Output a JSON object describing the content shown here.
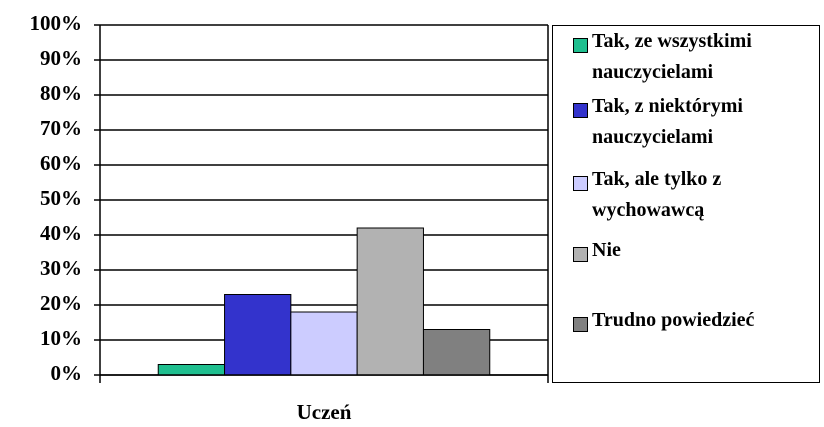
{
  "chart_data": {
    "type": "bar",
    "categories": [
      "Uczeń"
    ],
    "series": [
      {
        "name": "Tak, ze wszystkimi nauczycielami",
        "color": "#1fbf8f",
        "values": [
          3
        ]
      },
      {
        "name": "Tak, z niektórymi nauczycielami",
        "color": "#3333cc",
        "values": [
          23
        ]
      },
      {
        "name": "Tak, ale tylko z wychowawcą",
        "color": "#ccccff",
        "values": [
          18
        ]
      },
      {
        "name": "Nie",
        "color": "#b2b2b2",
        "values": [
          42
        ]
      },
      {
        "name": "Trudno powiedzieć",
        "color": "#808080",
        "values": [
          13
        ]
      }
    ],
    "ylim": [
      0,
      100
    ],
    "yticks": [
      {
        "value": 0,
        "label": "0%"
      },
      {
        "value": 10,
        "label": "10%"
      },
      {
        "value": 20,
        "label": "20%"
      },
      {
        "value": 30,
        "label": "30%"
      },
      {
        "value": 40,
        "label": "40%"
      },
      {
        "value": 50,
        "label": "50%"
      },
      {
        "value": 60,
        "label": "60%"
      },
      {
        "value": 70,
        "label": "70%"
      },
      {
        "value": 80,
        "label": "80%"
      },
      {
        "value": 90,
        "label": "90%"
      },
      {
        "value": 100,
        "label": "100%"
      }
    ],
    "grid": true,
    "legend": "right"
  }
}
